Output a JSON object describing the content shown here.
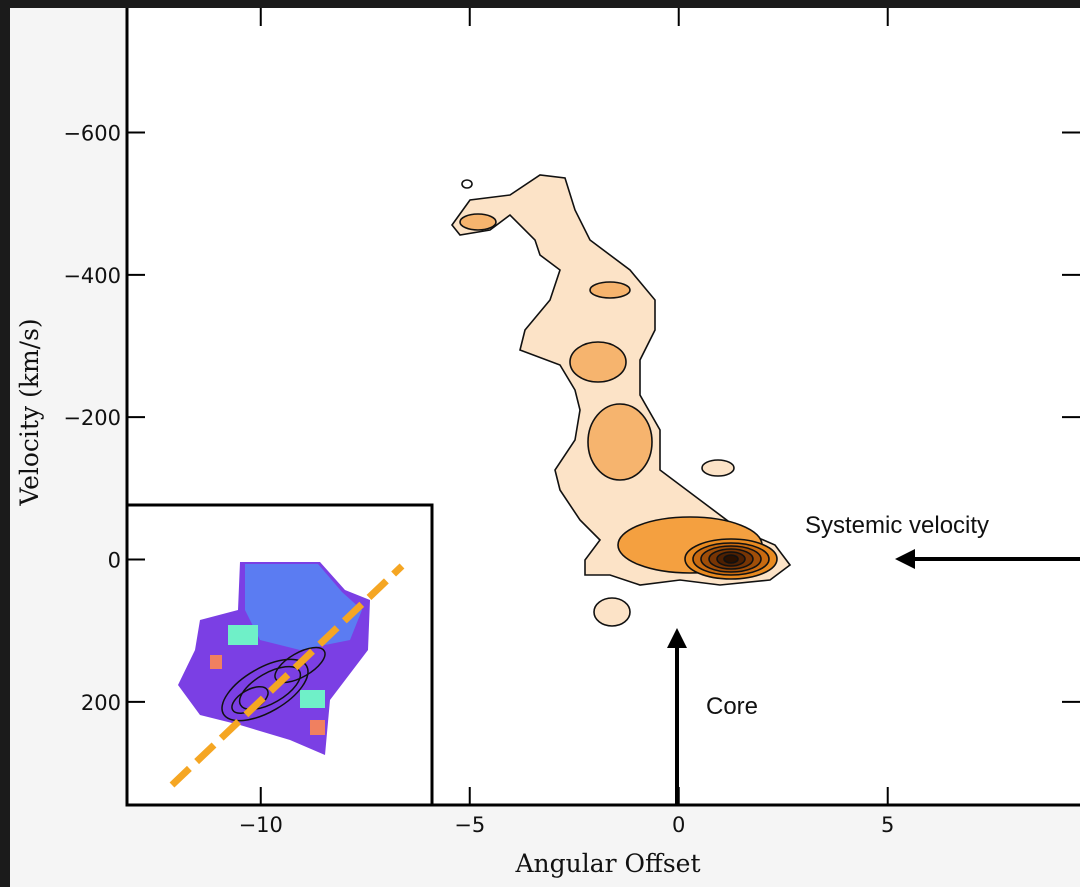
{
  "chart_data": {
    "type": "contour",
    "xlabel": "Angular Offset",
    "ylabel": "Velocity (km/s)",
    "xlim": [
      -13.2,
      9.6
    ],
    "xticks": [
      {
        "value": -10,
        "label": "−10"
      },
      {
        "value": -5,
        "label": "−5"
      },
      0,
      5
    ],
    "ylim": [
      345,
      -775
    ],
    "yticks": [
      {
        "value": -600,
        "label": "−600"
      },
      {
        "value": -400,
        "label": "−400"
      },
      {
        "value": -200,
        "label": "−200"
      },
      0,
      200
    ],
    "annotations": [
      "Systemic velocity",
      "Core"
    ]
  }
}
